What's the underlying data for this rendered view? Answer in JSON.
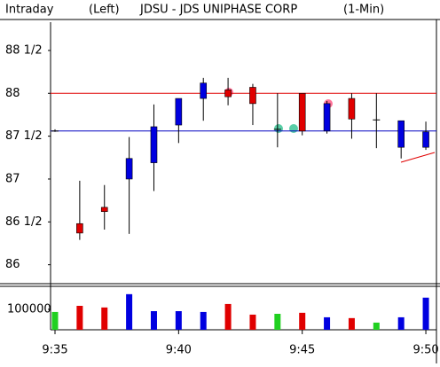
{
  "header": {
    "label": "Intraday",
    "side": "(Left)",
    "title": "JDSU - JDS UNIPHASE CORP",
    "interval": "(1-Min)"
  },
  "chart_data": [
    {
      "type": "candlestick",
      "open": [
        87.56,
        86.48,
        86.67,
        87.0,
        87.19,
        87.63,
        87.94,
        88.04,
        88.07,
        87.58,
        88.0,
        87.56,
        87.94,
        87.69,
        87.37,
        87.37
      ],
      "high": [
        87.58,
        86.98,
        86.93,
        87.49,
        87.87,
        87.94,
        88.18,
        88.18,
        88.11,
        88.0,
        88.0,
        87.91,
        88.0,
        88.0,
        87.68,
        87.67
      ],
      "low": [
        87.55,
        86.29,
        86.41,
        86.36,
        86.86,
        87.42,
        87.68,
        87.86,
        87.63,
        87.37,
        87.51,
        87.53,
        87.47,
        87.36,
        87.24,
        87.34
      ],
      "close": [
        87.56,
        86.37,
        86.62,
        87.24,
        87.61,
        87.94,
        88.12,
        87.96,
        87.88,
        87.57,
        87.56,
        87.88,
        87.7,
        87.69,
        87.68,
        87.55
      ],
      "colors": [
        "#000000",
        "#e00000",
        "#e00000",
        "#0000e0",
        "#0000e0",
        "#0000e0",
        "#0000e0",
        "#e00000",
        "#e00000",
        "#000000",
        "#e00000",
        "#0000e0",
        "#e00000",
        "#000000",
        "#0000e0",
        "#0000e0"
      ],
      "hlines": [
        {
          "value": 88,
          "color": "#e00000"
        },
        {
          "value": 87.56,
          "color": "#0000c0"
        }
      ],
      "ylim": [
        85.8,
        88.83
      ],
      "yticks": [
        {
          "value": 88.5,
          "label": "88 1/2"
        },
        88,
        {
          "value": 87.5,
          "label": "87 1/2"
        },
        87,
        {
          "value": 86.5,
          "label": "86 1/2"
        },
        86
      ]
    },
    {
      "type": "bar",
      "categories": [
        "9:35",
        null,
        null,
        null,
        null,
        "9:40",
        null,
        null,
        null,
        null,
        "9:45",
        null,
        null,
        null,
        null,
        "9:50"
      ],
      "values": [
        87000,
        117000,
        109000,
        174000,
        91000,
        91000,
        87000,
        126000,
        74000,
        78000,
        83000,
        61000,
        57000,
        35000,
        61000,
        157000
      ],
      "colors": [
        "#20d020",
        "#e00000",
        "#e00000",
        "#0000e0",
        "#0000e0",
        "#0000e0",
        "#0000e0",
        "#e00000",
        "#e00000",
        "#20d020",
        "#e00000",
        "#0000e0",
        "#e00000",
        "#20d020",
        "#0000e0",
        "#0000e0"
      ],
      "ylim": [
        0,
        208000
      ],
      "yticks": [
        100000
      ]
    }
  ]
}
